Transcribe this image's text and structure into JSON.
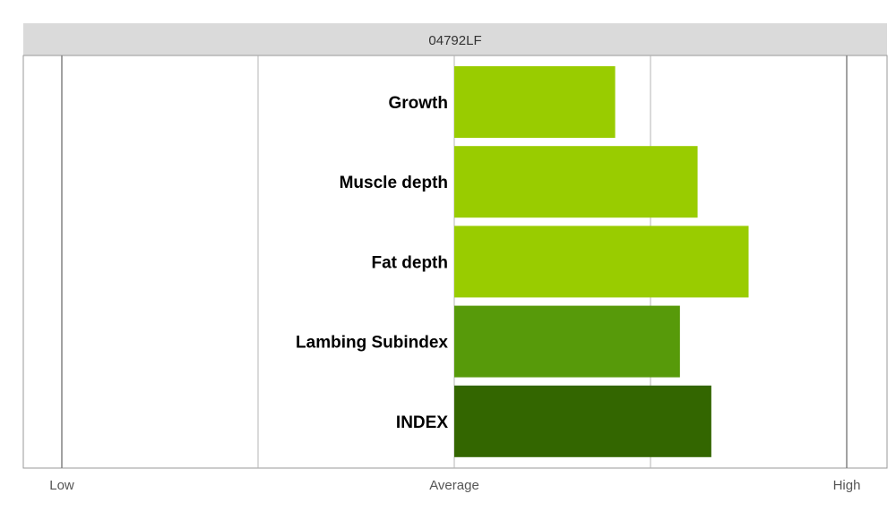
{
  "chart_data": {
    "type": "bar",
    "orientation": "horizontal",
    "title": "04792LF",
    "categories": [
      "Growth",
      "Muscle depth",
      "Fat depth",
      "Lambing Subindex",
      "INDEX"
    ],
    "values": [
      0.41,
      0.62,
      0.75,
      0.575,
      0.655
    ],
    "bar_colors": [
      "#99cc00",
      "#99cc00",
      "#99cc00",
      "#579a0a",
      "#336600"
    ],
    "xlim": [
      -1,
      1
    ],
    "x_ticks": [
      {
        "value": -1,
        "label": "Low"
      },
      {
        "value": 0,
        "label": "Average"
      },
      {
        "value": 1,
        "label": "High"
      }
    ],
    "gridlines": [
      -1,
      -0.5,
      0,
      0.5,
      1
    ],
    "grid": true,
    "legend": "none"
  }
}
